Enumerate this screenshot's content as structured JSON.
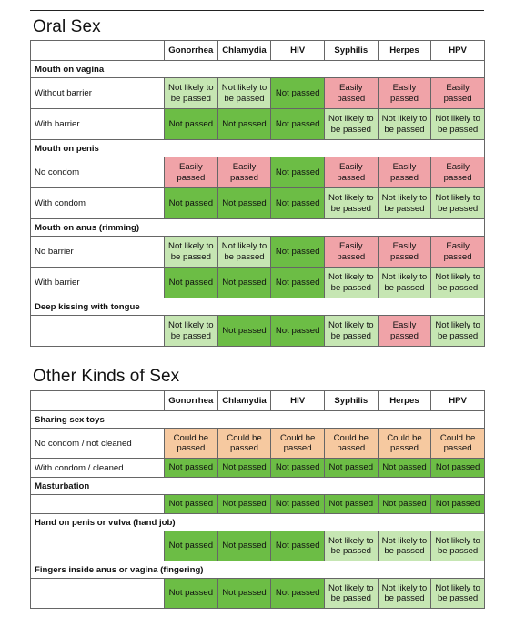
{
  "sections": [
    {
      "title": "Oral Sex",
      "headers": [
        "Gonorrhea",
        "Chlamydia",
        "HIV",
        "Syphilis",
        "Herpes",
        "HPV"
      ],
      "groups": [
        {
          "name": "Mouth on vagina",
          "rows": [
            {
              "label": "Without barrier",
              "cells": [
                {
                  "text": "Not likely to be passed",
                  "level": "nl"
                },
                {
                  "text": "Not likely to be passed",
                  "level": "nl"
                },
                {
                  "text": "Not passed",
                  "level": "np"
                },
                {
                  "text": "Easily passed",
                  "level": "ep"
                },
                {
                  "text": "Easily passed",
                  "level": "ep"
                },
                {
                  "text": "Easily passed",
                  "level": "ep"
                }
              ]
            },
            {
              "label": "With barrier",
              "cells": [
                {
                  "text": "Not passed",
                  "level": "np"
                },
                {
                  "text": "Not passed",
                  "level": "np"
                },
                {
                  "text": "Not passed",
                  "level": "np"
                },
                {
                  "text": "Not likely to be passed",
                  "level": "nl"
                },
                {
                  "text": "Not likely to be passed",
                  "level": "nl"
                },
                {
                  "text": "Not likely to be passed",
                  "level": "nl"
                }
              ]
            }
          ]
        },
        {
          "name": "Mouth on penis",
          "rows": [
            {
              "label": "No condom",
              "cells": [
                {
                  "text": "Easily passed",
                  "level": "ep"
                },
                {
                  "text": "Easily passed",
                  "level": "ep"
                },
                {
                  "text": "Not passed",
                  "level": "np"
                },
                {
                  "text": "Easily passed",
                  "level": "ep"
                },
                {
                  "text": "Easily passed",
                  "level": "ep"
                },
                {
                  "text": "Easily passed",
                  "level": "ep"
                }
              ]
            },
            {
              "label": "With condom",
              "cells": [
                {
                  "text": "Not passed",
                  "level": "np"
                },
                {
                  "text": "Not passed",
                  "level": "np"
                },
                {
                  "text": "Not passed",
                  "level": "np"
                },
                {
                  "text": "Not likely to be passed",
                  "level": "nl"
                },
                {
                  "text": "Not likely to be passed",
                  "level": "nl"
                },
                {
                  "text": "Not likely to be passed",
                  "level": "nl"
                }
              ]
            }
          ]
        },
        {
          "name": "Mouth on anus (rimming)",
          "rows": [
            {
              "label": "No barrier",
              "cells": [
                {
                  "text": "Not likely to be passed",
                  "level": "nl"
                },
                {
                  "text": "Not likely to be passed",
                  "level": "nl"
                },
                {
                  "text": "Not passed",
                  "level": "np"
                },
                {
                  "text": "Easily passed",
                  "level": "ep"
                },
                {
                  "text": "Easily passed",
                  "level": "ep"
                },
                {
                  "text": "Easily passed",
                  "level": "ep"
                }
              ]
            },
            {
              "label": "With barrier",
              "cells": [
                {
                  "text": "Not passed",
                  "level": "np"
                },
                {
                  "text": "Not passed",
                  "level": "np"
                },
                {
                  "text": "Not passed",
                  "level": "np"
                },
                {
                  "text": "Not likely to be passed",
                  "level": "nl"
                },
                {
                  "text": "Not likely to be passed",
                  "level": "nl"
                },
                {
                  "text": "Not likely to be passed",
                  "level": "nl"
                }
              ]
            }
          ]
        },
        {
          "name": "Deep kissing with tongue",
          "rows": [
            {
              "label": "",
              "cells": [
                {
                  "text": "Not likely to be passed",
                  "level": "nl"
                },
                {
                  "text": "Not passed",
                  "level": "np"
                },
                {
                  "text": "Not passed",
                  "level": "np"
                },
                {
                  "text": "Not likely to be passed",
                  "level": "nl"
                },
                {
                  "text": "Easily passed",
                  "level": "ep"
                },
                {
                  "text": "Not likely to be passed",
                  "level": "nl"
                }
              ]
            }
          ]
        }
      ]
    },
    {
      "title": "Other Kinds of Sex",
      "headers": [
        "Gonorrhea",
        "Chlamydia",
        "HIV",
        "Syphilis",
        "Herpes",
        "HPV"
      ],
      "groups": [
        {
          "name": "Sharing sex toys",
          "rows": [
            {
              "label": "No condom / not cleaned",
              "cells": [
                {
                  "text": "Could be passed",
                  "level": "cb"
                },
                {
                  "text": "Could be passed",
                  "level": "cb"
                },
                {
                  "text": "Could be passed",
                  "level": "cb"
                },
                {
                  "text": "Could be passed",
                  "level": "cb"
                },
                {
                  "text": "Could be passed",
                  "level": "cb"
                },
                {
                  "text": "Could be passed",
                  "level": "cb"
                }
              ]
            },
            {
              "label": "With condom / cleaned",
              "cells": [
                {
                  "text": "Not passed",
                  "level": "np"
                },
                {
                  "text": "Not passed",
                  "level": "np"
                },
                {
                  "text": "Not passed",
                  "level": "np"
                },
                {
                  "text": "Not passed",
                  "level": "np"
                },
                {
                  "text": "Not passed",
                  "level": "np"
                },
                {
                  "text": "Not passed",
                  "level": "np"
                }
              ]
            }
          ]
        },
        {
          "name": "Masturbation",
          "rows": [
            {
              "label": "",
              "cells": [
                {
                  "text": "Not passed",
                  "level": "np"
                },
                {
                  "text": "Not passed",
                  "level": "np"
                },
                {
                  "text": "Not passed",
                  "level": "np"
                },
                {
                  "text": "Not passed",
                  "level": "np"
                },
                {
                  "text": "Not passed",
                  "level": "np"
                },
                {
                  "text": "Not passed",
                  "level": "np"
                }
              ]
            }
          ]
        },
        {
          "name": "Hand on penis or vulva (hand job)",
          "rows": [
            {
              "label": "",
              "cells": [
                {
                  "text": "Not passed",
                  "level": "np"
                },
                {
                  "text": "Not passed",
                  "level": "np"
                },
                {
                  "text": "Not passed",
                  "level": "np"
                },
                {
                  "text": "Not likely to be passed",
                  "level": "nl"
                },
                {
                  "text": "Not likely to be passed",
                  "level": "nl"
                },
                {
                  "text": "Not likely to be passed",
                  "level": "nl"
                }
              ]
            }
          ]
        },
        {
          "name": "Fingers inside anus or vagina (fingering)",
          "rows": [
            {
              "label": "",
              "cells": [
                {
                  "text": "Not passed",
                  "level": "np"
                },
                {
                  "text": "Not passed",
                  "level": "np"
                },
                {
                  "text": "Not passed",
                  "level": "np"
                },
                {
                  "text": "Not likely to be passed",
                  "level": "nl"
                },
                {
                  "text": "Not likely to be passed",
                  "level": "nl"
                },
                {
                  "text": "Not likely to be passed",
                  "level": "nl"
                }
              ]
            }
          ]
        }
      ]
    }
  ],
  "colors": {
    "not_passed": "#6cbd45",
    "not_likely": "#c6e6b3",
    "easily_passed": "#f0a3a8",
    "could_be_passed": "#f6c9a0"
  }
}
